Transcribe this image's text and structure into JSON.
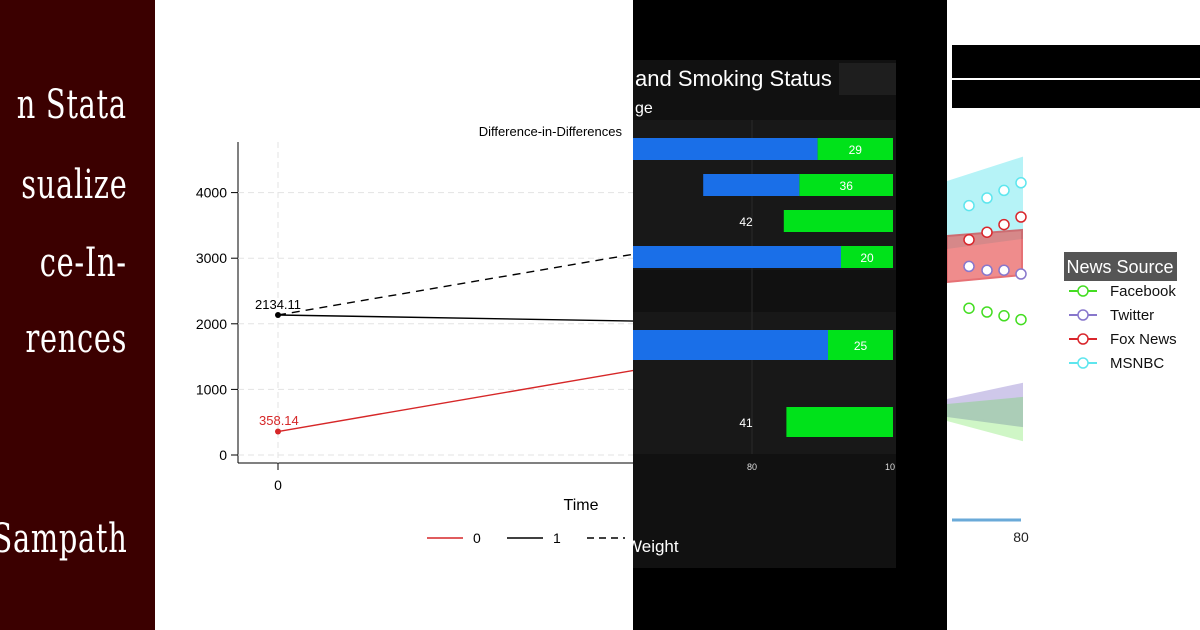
{
  "title_panel": {
    "lines": [
      "n Stata",
      "sualize",
      "ce-In-",
      "rences"
    ],
    "author": "Sampath",
    "background": "#3b0000"
  },
  "chart_data": [
    {
      "type": "line",
      "title": "Difference-in-Differences",
      "xlabel": "Time",
      "ylabel": "",
      "x_ticks": [
        "0"
      ],
      "y_ticks": [
        0,
        1000,
        2000,
        3000,
        4000
      ],
      "ylim": [
        0,
        4800
      ],
      "grid": true,
      "legend_position": "bottom",
      "series": [
        {
          "name": "0",
          "color": "#d62728",
          "style": "solid",
          "x": [
            0,
            1
          ],
          "y": [
            358.14,
            1720
          ]
        },
        {
          "name": "1",
          "color": "#000000",
          "style": "solid",
          "x": [
            0,
            1
          ],
          "y": [
            2134.11,
            2000
          ]
        },
        {
          "name": "",
          "color": "#000000",
          "style": "dashed",
          "x": [
            0,
            1
          ],
          "y": [
            2134.11,
            3490
          ]
        }
      ],
      "annotations": [
        {
          "text": "2134.11",
          "x": 0,
          "y": 2134.11,
          "color": "#000000"
        },
        {
          "text": "358.14",
          "x": 0,
          "y": 358.14,
          "color": "#d62728"
        }
      ]
    },
    {
      "type": "bar",
      "title": "and Smoking Status",
      "subtitle": "ge",
      "legend_text": "Weight",
      "x_ticks": [
        "80",
        "10"
      ],
      "xlim": [
        0,
        100
      ],
      "series": [
        {
          "name": "",
          "color": "#1a6fe8",
          "values": [
            71,
            37,
            0,
            81,
            75,
            0
          ]
        },
        {
          "name": "",
          "color": "#00e21a",
          "values": [
            29,
            36,
            42,
            20,
            25,
            41
          ]
        }
      ],
      "data_labels": [
        "29",
        "36",
        "42",
        "20",
        "25",
        "41"
      ]
    },
    {
      "type": "line",
      "legend_title": "News Source",
      "x_ticks": [
        "80"
      ],
      "series": [
        {
          "name": "Facebook",
          "color": "#44dd22",
          "values": [
            0.61,
            0.6,
            0.59,
            0.58
          ]
        },
        {
          "name": "Twitter",
          "color": "#8877cc",
          "values": [
            0.72,
            0.71,
            0.71,
            0.7
          ]
        },
        {
          "name": "Fox News",
          "color": "#d9262c",
          "values": [
            0.79,
            0.81,
            0.83,
            0.85
          ]
        },
        {
          "name": "MSNBC",
          "color": "#5ee6ee",
          "values": [
            0.88,
            0.9,
            0.92,
            0.94
          ]
        }
      ]
    }
  ]
}
